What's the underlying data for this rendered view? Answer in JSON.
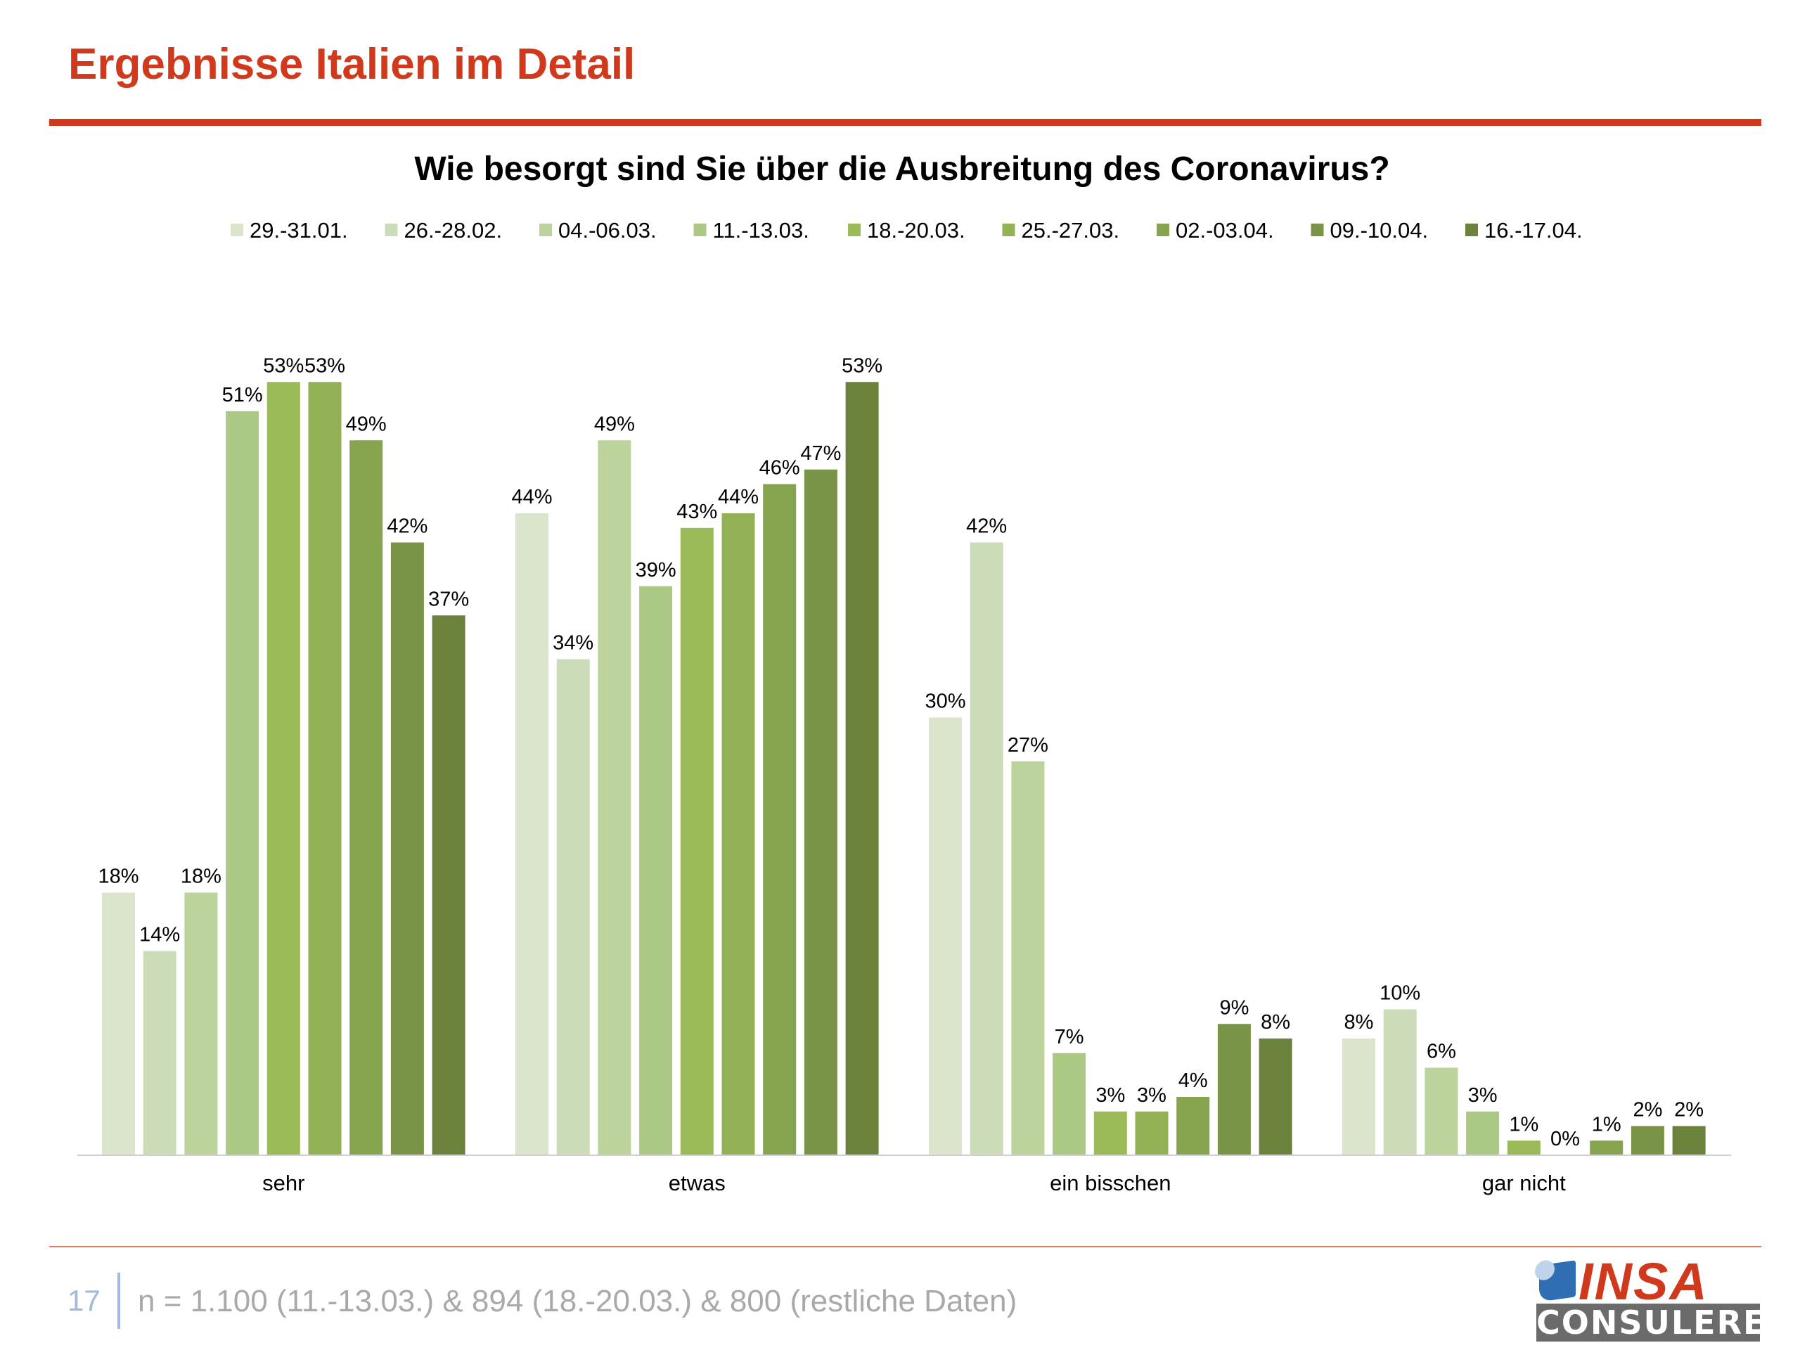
{
  "header": {
    "title": "Ergebnisse Italien im Detail"
  },
  "colors": {
    "accent": "#d0391b",
    "series": [
      "#dbe5cc",
      "#cddcb8",
      "#bcd39c",
      "#abc985",
      "#9bbb59",
      "#93b256",
      "#86a34e",
      "#7a9447",
      "#6b823c"
    ]
  },
  "chart_data": {
    "type": "bar",
    "title": "Wie besorgt sind Sie über die Ausbreitung des Coronavirus?",
    "categories": [
      "sehr",
      "etwas",
      "ein bisschen",
      "gar nicht"
    ],
    "unit": "%",
    "ylim": [
      0,
      60
    ],
    "grid": false,
    "legend_position": "top",
    "series": [
      {
        "name": "29.-31.01.",
        "values": [
          18,
          44,
          30,
          8
        ]
      },
      {
        "name": "26.-28.02.",
        "values": [
          14,
          34,
          42,
          10
        ]
      },
      {
        "name": "04.-06.03.",
        "values": [
          18,
          49,
          27,
          6
        ]
      },
      {
        "name": "11.-13.03.",
        "values": [
          51,
          39,
          7,
          3
        ]
      },
      {
        "name": "18.-20.03.",
        "values": [
          53,
          43,
          3,
          1
        ]
      },
      {
        "name": "25.-27.03.",
        "values": [
          53,
          44,
          3,
          0
        ]
      },
      {
        "name": "02.-03.04.",
        "values": [
          49,
          46,
          4,
          1
        ]
      },
      {
        "name": "09.-10.04.",
        "values": [
          42,
          47,
          9,
          2
        ]
      },
      {
        "name": "16.-17.04.",
        "values": [
          37,
          53,
          8,
          2
        ]
      }
    ]
  },
  "footer": {
    "page_number": "17",
    "note": "n = 1.100 (11.-13.03.) & 894 (18.-20.03.) & 800 (restliche Daten)"
  },
  "logo": {
    "word": "INSA",
    "sub": "CONSULERE"
  }
}
